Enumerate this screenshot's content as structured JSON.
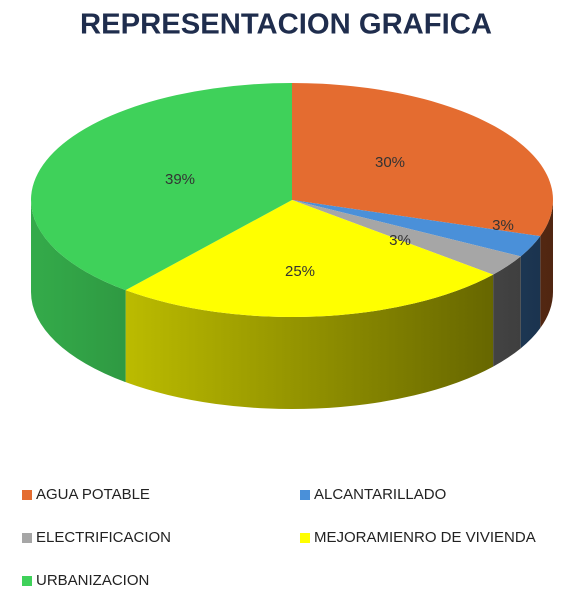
{
  "chart_data": {
    "type": "pie",
    "title": "REPRESENTACION GRAFICA",
    "categories": [
      "AGUA POTABLE",
      "ALCANTARILLADO",
      "ELECTRIFICACION",
      "MEJORAMIENRO DE VIVIENDA",
      "URBANIZACION"
    ],
    "values": [
      30,
      3,
      3,
      25,
      39
    ],
    "value_labels": [
      "30%",
      "3%",
      "3%",
      "25%",
      "39%"
    ],
    "colors": [
      "#e46c30",
      "#4a90d9",
      "#a6a6a6",
      "#ffff00",
      "#3fd15a"
    ],
    "legend": "bottom"
  }
}
